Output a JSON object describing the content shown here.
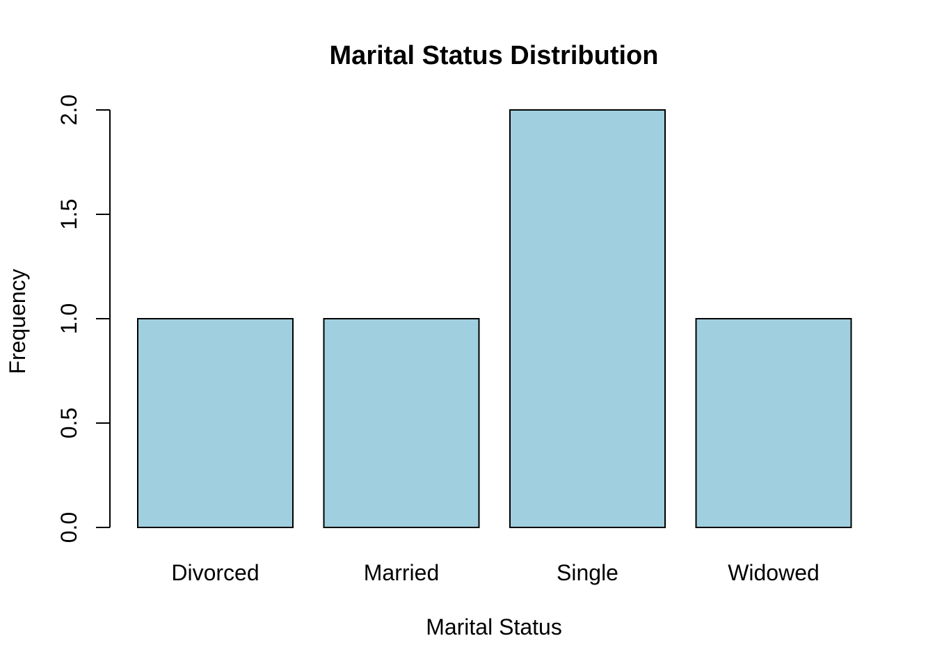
{
  "chart_data": {
    "type": "bar",
    "title": "Marital Status Distribution",
    "xlabel": "Marital Status",
    "ylabel": "Frequency",
    "categories": [
      "Divorced",
      "Married",
      "Single",
      "Widowed"
    ],
    "values": [
      1,
      1,
      2,
      1
    ],
    "ylim": [
      0,
      2
    ],
    "yticks": [
      "0.0",
      "0.5",
      "1.0",
      "1.5",
      "2.0"
    ],
    "grid": false,
    "bar_color": "#A0CFE0",
    "outline_color": "#000000"
  }
}
